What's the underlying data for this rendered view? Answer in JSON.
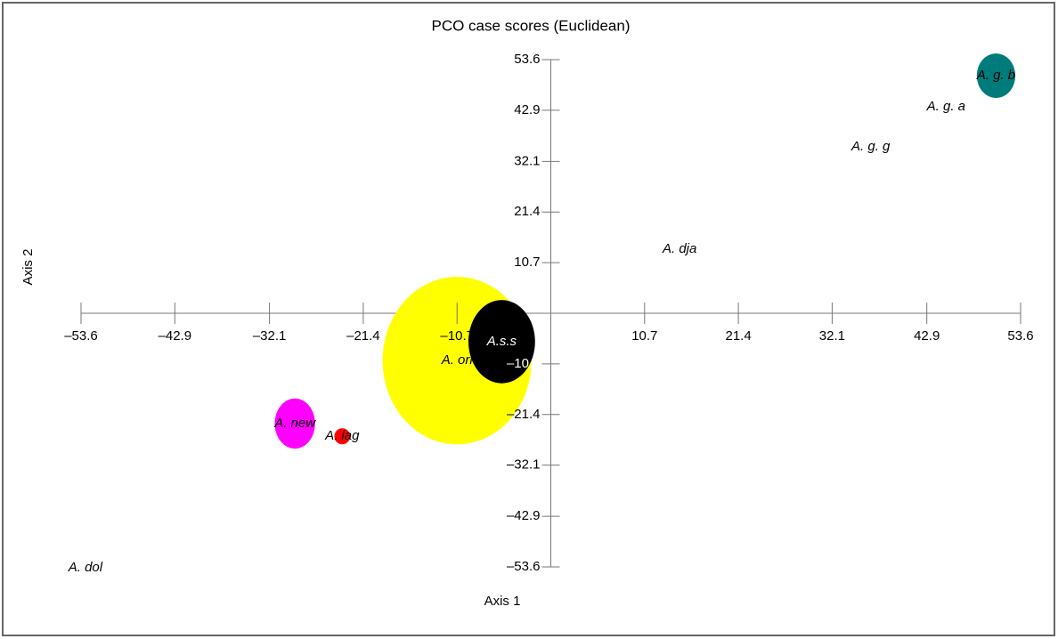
{
  "chart_data": {
    "type": "scatter",
    "title": "PCO case scores (Euclidean)",
    "x_label": "Axis 1",
    "y_label": "Axis 2",
    "xlim": [
      -53.6,
      53.6
    ],
    "ylim": [
      -53.6,
      53.6
    ],
    "xticks": [
      {
        "value": -53.6,
        "label": "–53.6"
      },
      {
        "value": -42.9,
        "label": "–42.9"
      },
      {
        "value": -32.1,
        "label": "–32.1"
      },
      {
        "value": -21.4,
        "label": "–21.4"
      },
      {
        "value": -10.7,
        "label": "–10.7"
      },
      10.7,
      21.4,
      32.1,
      42.9,
      53.6
    ],
    "yticks": [
      {
        "value": -53.6,
        "label": "–53.6"
      },
      {
        "value": -42.9,
        "label": "–42.9"
      },
      {
        "value": -32.1,
        "label": "–32.1"
      },
      {
        "value": -21.4,
        "label": "–21.4"
      },
      {
        "value": -10.7,
        "label": "–10.7"
      },
      10.7,
      21.4,
      32.1,
      42.9,
      53.6
    ],
    "points": [
      {
        "label": "A. ori",
        "x": -10.7,
        "y": -10.0,
        "rx": 8.5,
        "ry": 17.7,
        "color": "#ffff00"
      },
      {
        "label": "A.s.s",
        "x": -5.6,
        "y": -6.0,
        "rx": 3.8,
        "ry": 8.8,
        "color": "#000000"
      },
      {
        "label": "A. g. b",
        "x": 50.8,
        "y": 50.2,
        "rx": 2.2,
        "ry": 4.7,
        "color": "#007b7b"
      },
      {
        "label": "A. new",
        "x": -29.2,
        "y": -23.3,
        "rx": 2.3,
        "ry": 5.3,
        "color": "#ff00ff"
      },
      {
        "label": "A. lag",
        "x": -23.8,
        "y": -26.0,
        "rx": 0.9,
        "ry": 1.7,
        "color": "#ff0000"
      },
      {
        "label": "A. g. a",
        "x": 45.1,
        "y": 43.6
      },
      {
        "label": "A. g. g",
        "x": 36.5,
        "y": 35.2
      },
      {
        "label": "A. dja",
        "x": 14.7,
        "y": 13.5
      },
      {
        "label": "A. dol",
        "x": -53.1,
        "y": -53.8
      }
    ]
  }
}
